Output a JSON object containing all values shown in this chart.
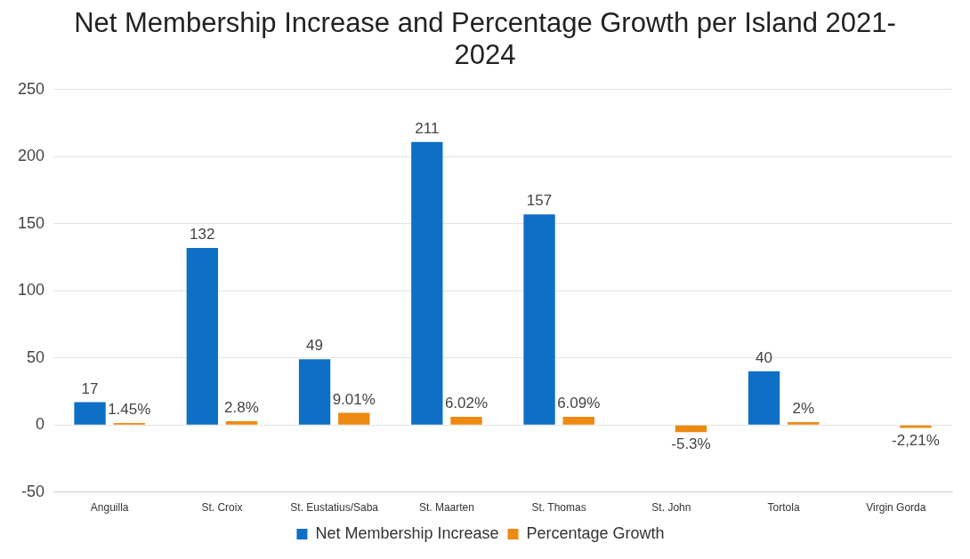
{
  "chart_data": {
    "type": "bar",
    "title": "Net Membership Increase and Percentage Growth per Island 2021-2024",
    "categories": [
      "Anguilla",
      "St. Croix",
      "St. Eustatius/Saba",
      "St. Maarten",
      "St. Thomas",
      "St. John",
      "Tortola",
      "Virgin Gorda"
    ],
    "series": [
      {
        "name": "Net Membership Increase",
        "color": "#0e6fc6",
        "values": [
          17,
          132,
          49,
          211,
          157,
          null,
          40,
          null
        ],
        "value_labels": [
          "17",
          "132",
          "49",
          "211",
          "157",
          null,
          "40",
          null
        ]
      },
      {
        "name": "Percentage Growth",
        "color": "#ec8a12",
        "values": [
          1.45,
          2.8,
          9.01,
          6.02,
          6.09,
          -5.3,
          2,
          -2.21
        ],
        "value_labels": [
          "1.45%",
          "2.8%",
          "9.01%",
          "6.02%",
          "6.09%",
          "-5.3%",
          "2%",
          "-2,21%"
        ]
      }
    ],
    "ylim": [
      -50,
      250
    ],
    "yticks": [
      -50,
      0,
      50,
      100,
      150,
      200,
      250
    ],
    "grid": "y",
    "legend": "bottom"
  }
}
